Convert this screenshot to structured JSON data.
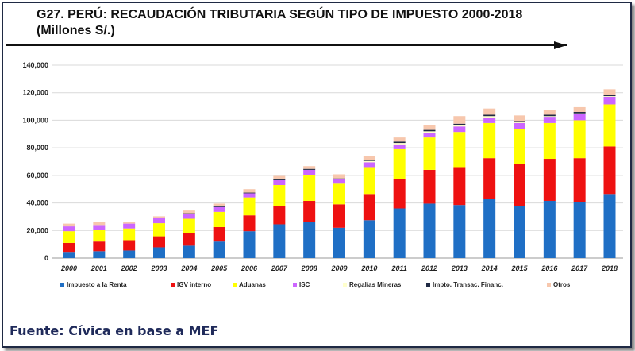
{
  "header": {
    "title": "G27. PERÚ: RECAUDACIÓN TRIBUTARIA SEGÚN TIPO DE IMPUESTO 2000-2018",
    "subtitle": "(Millones S/.)"
  },
  "footer": {
    "source": "Fuente: Cívica  en base a MEF"
  },
  "chart_data": {
    "type": "bar",
    "stacked": true,
    "title": "G27. PERÚ: RECAUDACIÓN TRIBUTARIA SEGÚN TIPO DE IMPUESTO 2000-2018",
    "subtitle": "(Millones S/.)",
    "xlabel": "",
    "ylabel": "",
    "ylim": [
      0,
      140000
    ],
    "yticks": [
      0,
      20000,
      40000,
      60000,
      80000,
      100000,
      120000,
      140000
    ],
    "ytick_labels": [
      "0",
      "20,000",
      "40,000",
      "60,000",
      "80,000",
      "100,000",
      "120,000",
      "140,000"
    ],
    "grid": true,
    "legend_position": "bottom",
    "categories": [
      "2000",
      "2001",
      "2002",
      "2003",
      "2004",
      "2005",
      "2006",
      "2007",
      "2008",
      "2009",
      "2010",
      "2011",
      "2012",
      "2013",
      "2014",
      "2015",
      "2016",
      "2017",
      "2018"
    ],
    "series": [
      {
        "name": "Impuesto a la Renta",
        "color": "#1f6fc5",
        "values": [
          4500,
          5000,
          5500,
          7800,
          9000,
          12000,
          19500,
          24500,
          26000,
          22000,
          27500,
          36000,
          39500,
          38500,
          43000,
          38000,
          41500,
          40500,
          46500
        ]
      },
      {
        "name": "IGV interno",
        "color": "#ee1111",
        "values": [
          6500,
          7000,
          7500,
          8000,
          9000,
          10500,
          11500,
          13000,
          15500,
          17000,
          19000,
          21500,
          24500,
          27500,
          29500,
          30500,
          30500,
          32000,
          34500
        ]
      },
      {
        "name": "Aduanas",
        "color": "#ffff00",
        "values": [
          8500,
          8500,
          8500,
          9500,
          10500,
          11000,
          13000,
          15500,
          19000,
          15000,
          19500,
          21500,
          23500,
          25500,
          25500,
          25000,
          26000,
          27500,
          30500
        ]
      },
      {
        "name": "ISC",
        "color": "#cc66ff",
        "values": [
          3500,
          3500,
          3500,
          3500,
          3500,
          3500,
          3000,
          3500,
          3500,
          3000,
          3500,
          3500,
          3500,
          4000,
          4000,
          4500,
          4500,
          4500,
          5500
        ]
      },
      {
        "name": "Regalías Mineras",
        "color": "#ffffcc",
        "values": [
          0,
          0,
          0,
          0,
          0,
          0,
          0,
          0,
          0,
          0,
          1000,
          1000,
          1000,
          1000,
          1000,
          500,
          500,
          500,
          500
        ]
      },
      {
        "name": "Impto. Transac. Financ.",
        "color": "#1f2a44",
        "values": [
          0,
          0,
          0,
          0,
          500,
          500,
          500,
          600,
          700,
          800,
          900,
          1000,
          1000,
          1000,
          1000,
          1000,
          1000,
          1000,
          1000
        ]
      },
      {
        "name": "Otros",
        "color": "#f7c7ad",
        "values": [
          2000,
          2000,
          1500,
          1500,
          2000,
          2000,
          2500,
          2500,
          2000,
          3000,
          2500,
          3000,
          3500,
          5500,
          4500,
          4000,
          3500,
          3500,
          4000
        ]
      }
    ]
  }
}
